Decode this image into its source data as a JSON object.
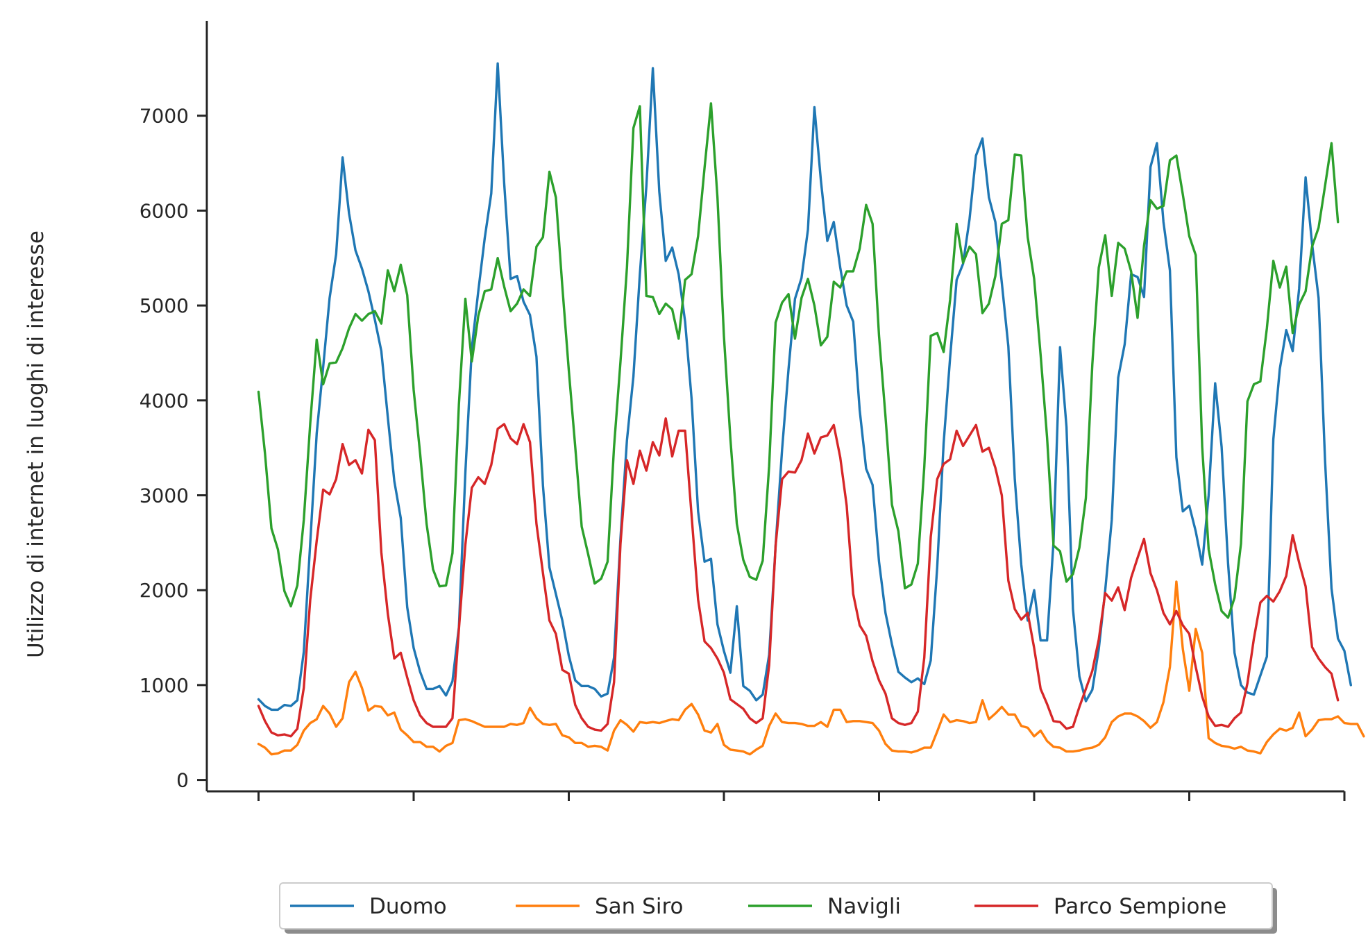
{
  "chart_data": {
    "type": "line",
    "title": "",
    "xlabel": "",
    "ylabel": "Utilizzo di internet in luoghi di interesse",
    "ylim": [
      -120,
      8000
    ],
    "y_ticks": [
      0,
      1000,
      2000,
      3000,
      4000,
      5000,
      6000,
      7000
    ],
    "y_tick_labels": [
      "0",
      "1000",
      "2000",
      "3000",
      "4000",
      "5000",
      "6000",
      "7000"
    ],
    "x_tick_positions": [
      0,
      24,
      48,
      72,
      96,
      120,
      144,
      168
    ],
    "x_tick_labels": [
      "",
      "",
      "",
      "",
      "",
      "",
      "",
      ""
    ],
    "xlim": [
      -8,
      168
    ],
    "grid": false,
    "legend_position": "bottom-center",
    "series": [
      {
        "name": "Duomo",
        "color": "#1f77b4",
        "values": [
          850,
          780,
          740,
          740,
          790,
          780,
          840,
          1350,
          2500,
          3650,
          4350,
          5080,
          5540,
          6560,
          5970,
          5580,
          5390,
          5150,
          4850,
          4520,
          3820,
          3150,
          2760,
          1820,
          1390,
          1140,
          960,
          960,
          990,
          890,
          1040,
          1610,
          3240,
          4550,
          5150,
          5710,
          6180,
          7550,
          6290,
          5280,
          5310,
          5040,
          4900,
          4460,
          3100,
          2240,
          1960,
          1680,
          1310,
          1050,
          990,
          990,
          960,
          880,
          910,
          1290,
          2550,
          3580,
          4250,
          5330,
          6260,
          7500,
          6200,
          5470,
          5610,
          5330,
          4830,
          4020,
          2830,
          2300,
          2330,
          1640,
          1360,
          1130,
          1830,
          990,
          940,
          840,
          900,
          1320,
          2470,
          3480,
          4330,
          5070,
          5290,
          5800,
          7090,
          6320,
          5680,
          5880,
          5400,
          5000,
          4830,
          3900,
          3280,
          3110,
          2300,
          1760,
          1430,
          1140,
          1080,
          1030,
          1070,
          1010,
          1260,
          2240,
          3550,
          4450,
          5270,
          5440,
          5910,
          6580,
          6760,
          6140,
          5880,
          5240,
          4570,
          3170,
          2270,
          1680,
          2000,
          1470,
          1470,
          2510,
          4560,
          3720,
          1800,
          1090,
          830,
          950,
          1380,
          2000,
          2740,
          4240,
          4590,
          5330,
          5300,
          5090,
          6460,
          6710,
          5880,
          5370,
          3400,
          2830,
          2890,
          2620,
          2270,
          3000,
          4180,
          3510,
          2280,
          1340,
          1000,
          920,
          900,
          1100,
          1300,
          3590,
          4330,
          4740,
          4520,
          5180,
          6350,
          5650,
          5080,
          3370,
          2020,
          1490,
          1360,
          1000
        ]
      },
      {
        "name": "San Siro",
        "color": "#ff7f0e",
        "values": [
          380,
          340,
          270,
          280,
          310,
          310,
          370,
          520,
          600,
          640,
          780,
          700,
          560,
          650,
          1030,
          1140,
          970,
          730,
          780,
          770,
          680,
          710,
          530,
          470,
          400,
          400,
          350,
          350,
          300,
          360,
          390,
          630,
          640,
          620,
          590,
          560,
          560,
          560,
          560,
          590,
          580,
          600,
          760,
          650,
          590,
          580,
          590,
          470,
          450,
          390,
          390,
          350,
          360,
          350,
          310,
          520,
          630,
          580,
          510,
          610,
          600,
          610,
          600,
          620,
          640,
          630,
          740,
          800,
          690,
          520,
          500,
          590,
          370,
          320,
          310,
          300,
          270,
          320,
          360,
          570,
          700,
          610,
          600,
          600,
          590,
          570,
          570,
          610,
          560,
          740,
          740,
          610,
          620,
          620,
          610,
          600,
          520,
          380,
          310,
          300,
          300,
          290,
          310,
          340,
          340,
          510,
          690,
          610,
          630,
          620,
          600,
          610,
          840,
          640,
          700,
          770,
          690,
          690,
          570,
          550,
          460,
          520,
          410,
          350,
          340,
          300,
          300,
          310,
          330,
          340,
          370,
          450,
          610,
          670,
          700,
          700,
          670,
          620,
          550,
          610,
          820,
          1190,
          2090,
          1380,
          940,
          1590,
          1340,
          440,
          390,
          360,
          350,
          330,
          350,
          310,
          300,
          280,
          400,
          480,
          540,
          520,
          550,
          710,
          460,
          530,
          630,
          640,
          640,
          670,
          600,
          590,
          590,
          460
        ]
      },
      {
        "name": "Navigli",
        "color": "#2ca02c",
        "values": [
          4090,
          3440,
          2650,
          2430,
          1990,
          1830,
          2050,
          2740,
          3760,
          4640,
          4170,
          4390,
          4400,
          4550,
          4760,
          4910,
          4840,
          4910,
          4940,
          4810,
          5370,
          5150,
          5430,
          5110,
          4110,
          3440,
          2700,
          2220,
          2040,
          2050,
          2390,
          3960,
          5070,
          4410,
          4890,
          5150,
          5170,
          5500,
          5200,
          4940,
          5020,
          5170,
          5100,
          5620,
          5720,
          6410,
          6140,
          5200,
          4320,
          3510,
          2670,
          2380,
          2070,
          2120,
          2300,
          3510,
          4410,
          5400,
          6870,
          7100,
          5100,
          5090,
          4910,
          5020,
          4960,
          4650,
          5270,
          5330,
          5730,
          6450,
          7130,
          6140,
          4680,
          3600,
          2700,
          2320,
          2140,
          2110,
          2310,
          3310,
          4820,
          5030,
          5120,
          4650,
          5080,
          5280,
          5000,
          4580,
          4670,
          5250,
          5190,
          5360,
          5360,
          5600,
          6060,
          5860,
          4680,
          3830,
          2900,
          2620,
          2020,
          2060,
          2280,
          3300,
          4680,
          4710,
          4510,
          5060,
          5860,
          5450,
          5620,
          5540,
          4920,
          5020,
          5310,
          5860,
          5900,
          6590,
          6580,
          5720,
          5280,
          4480,
          3610,
          2470,
          2410,
          2090,
          2170,
          2450,
          2970,
          4380,
          5400,
          5740,
          5100,
          5660,
          5600,
          5360,
          4870,
          5630,
          6110,
          6020,
          6050,
          6530,
          6580,
          6170,
          5730,
          5530,
          3510,
          2430,
          2060,
          1780,
          1710,
          1920,
          2490,
          3990,
          4170,
          4200,
          4760,
          5470,
          5190,
          5410,
          4710,
          5010,
          5150,
          5620,
          5820,
          6260,
          6710,
          5880
        ]
      },
      {
        "name": "Parco Sempione",
        "color": "#d62728",
        "values": [
          780,
          620,
          500,
          470,
          480,
          460,
          540,
          970,
          1900,
          2520,
          3060,
          3010,
          3170,
          3540,
          3320,
          3370,
          3230,
          3690,
          3580,
          2400,
          1750,
          1280,
          1340,
          1080,
          840,
          680,
          600,
          560,
          560,
          560,
          650,
          1590,
          2480,
          3080,
          3190,
          3120,
          3320,
          3700,
          3750,
          3600,
          3540,
          3750,
          3560,
          2700,
          2180,
          1680,
          1540,
          1160,
          1120,
          790,
          650,
          560,
          530,
          520,
          590,
          1030,
          2490,
          3370,
          3120,
          3470,
          3260,
          3560,
          3420,
          3810,
          3410,
          3680,
          3680,
          2790,
          1900,
          1460,
          1390,
          1280,
          1130,
          850,
          800,
          750,
          650,
          600,
          650,
          1210,
          2470,
          3170,
          3250,
          3240,
          3370,
          3650,
          3440,
          3610,
          3630,
          3740,
          3400,
          2890,
          1960,
          1630,
          1520,
          1250,
          1050,
          910,
          650,
          600,
          580,
          600,
          720,
          1290,
          2560,
          3170,
          3330,
          3380,
          3680,
          3520,
          3630,
          3740,
          3460,
          3500,
          3290,
          3000,
          2100,
          1800,
          1690,
          1760,
          1390,
          960,
          800,
          620,
          610,
          540,
          560,
          770,
          960,
          1150,
          1480,
          1970,
          1890,
          2030,
          1790,
          2130,
          2340,
          2540,
          2180,
          2000,
          1760,
          1640,
          1780,
          1630,
          1540,
          1190,
          880,
          670,
          570,
          580,
          560,
          650,
          710,
          1020,
          1490,
          1870,
          1940,
          1880,
          1990,
          2150,
          2580,
          2290,
          2040,
          1400,
          1280,
          1190,
          1120,
          840
        ]
      }
    ]
  }
}
